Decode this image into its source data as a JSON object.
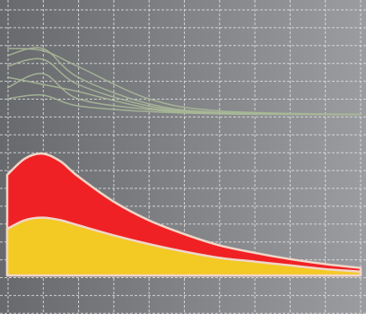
{
  "chart_data": [
    {
      "type": "line",
      "x": [
        0,
        1,
        2,
        4,
        6,
        10
      ],
      "xlim": [
        0,
        10
      ],
      "ylim": [
        0,
        100
      ],
      "grid": true,
      "series": [
        {
          "color": "#a9b897",
          "values": [
            95,
            92,
            70,
            25,
            8,
            3
          ]
        },
        {
          "color": "#a9b897",
          "values": [
            85,
            95,
            55,
            18,
            6,
            3
          ]
        },
        {
          "color": "#a9b897",
          "values": [
            70,
            80,
            45,
            15,
            5,
            3
          ]
        },
        {
          "color": "#a9b897",
          "values": [
            55,
            45,
            35,
            12,
            5,
            3
          ]
        },
        {
          "color": "#a9b897",
          "values": [
            40,
            60,
            25,
            10,
            4,
            3
          ]
        },
        {
          "color": "#a9b897",
          "values": [
            25,
            30,
            15,
            7,
            4,
            3
          ]
        }
      ]
    },
    {
      "type": "area",
      "x": [
        0,
        0.5,
        1,
        1.5,
        2,
        3,
        4,
        5,
        6,
        7,
        8,
        9,
        10
      ],
      "xlim": [
        0,
        10
      ],
      "ylim": [
        0,
        100
      ],
      "grid": true,
      "series": [
        {
          "color": "#f02124",
          "values": [
            80,
            93,
            97,
            91,
            79,
            59,
            44,
            33,
            24,
            18,
            13,
            9,
            6
          ]
        },
        {
          "color": "#f3c923",
          "values": [
            37,
            44,
            46,
            44,
            40,
            32,
            25,
            19,
            14,
            11,
            8,
            5,
            3
          ]
        }
      ]
    }
  ]
}
